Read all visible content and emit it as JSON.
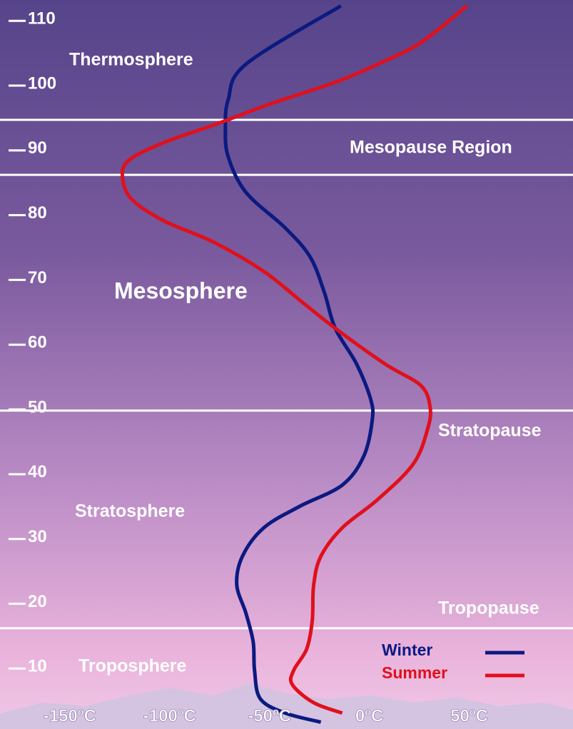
{
  "chart_data": {
    "type": "line",
    "swap_axes": true,
    "annotations": [
      "Thermosphere",
      "Mesopause Region",
      "Mesosphere",
      "Stratopause",
      "Stratosphere",
      "Tropopause",
      "Troposphere"
    ],
    "boundaries": [
      94.5,
      86,
      49.6,
      16
    ],
    "xlim": [
      0,
      113
    ],
    "xticks": [
      10,
      20,
      30,
      40,
      50,
      60,
      70,
      80,
      90,
      100,
      110
    ],
    "ylim": [
      -185,
      102
    ],
    "yticks": [
      {
        "value": -150,
        "label": "-150ºC"
      },
      {
        "value": -100,
        "label": "-100ºC"
      },
      {
        "value": -50,
        "label": "-50ºC"
      },
      {
        "value": 0,
        "label": "0ºC"
      },
      {
        "value": 50,
        "label": "50ºC"
      }
    ],
    "series": [
      {
        "name": "Winter",
        "color": "#0b1a80",
        "x": [
          112.1,
          103.1,
          97.6,
          93.2,
          88.8,
          83.3,
          77.8,
          73.3,
          67.8,
          62.3,
          56.8,
          51.3,
          48.0,
          42.5,
          38.1,
          34.8,
          31.5,
          27.1,
          22.7,
          18.3,
          13.9,
          9.5,
          5.1,
          2.9,
          1.5
        ],
        "values": [
          -14.3,
          -61.8,
          -70.7,
          -72.1,
          -70.7,
          -61.8,
          -42.1,
          -29.6,
          -22.5,
          -17.1,
          -6.4,
          0.7,
          1.4,
          -2.9,
          -13.6,
          -35,
          -52.9,
          -63.6,
          -66.4,
          -61.8,
          -58.2,
          -57.5,
          -54.6,
          -42.1,
          -24.3
        ]
      },
      {
        "name": "Summer",
        "color": "#e0101c",
        "x": [
          112.1,
          106.4,
          103.1,
          100.3,
          97.0,
          93.7,
          91.0,
          88.2,
          85.5,
          82.2,
          78.9,
          75.6,
          71.1,
          66.7,
          62.3,
          56.8,
          53.5,
          50.2,
          46.9,
          41.4,
          35.9,
          31.5,
          27.1,
          22.7,
          17.2,
          12.8,
          9.5,
          7.3,
          4.5,
          2.9
        ],
        "values": [
          48.9,
          25.7,
          4.3,
          -17.1,
          -49.3,
          -77.9,
          -102.9,
          -120.7,
          -123.6,
          -118.9,
          -102.9,
          -77.9,
          -52.9,
          -35,
          -17.1,
          7.9,
          25.7,
          30.4,
          29.3,
          22.1,
          4.3,
          -13.6,
          -24.3,
          -27.9,
          -28.6,
          -31.4,
          -37.9,
          -38.6,
          -27.9,
          -13.6
        ]
      }
    ]
  }
}
